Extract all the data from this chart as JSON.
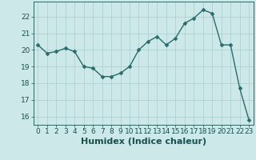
{
  "x": [
    0,
    1,
    2,
    3,
    4,
    5,
    6,
    7,
    8,
    9,
    10,
    11,
    12,
    13,
    14,
    15,
    16,
    17,
    18,
    19,
    20,
    21,
    22,
    23
  ],
  "y": [
    20.3,
    19.8,
    19.9,
    20.1,
    19.9,
    19.0,
    18.9,
    18.4,
    18.4,
    18.6,
    19.0,
    20.0,
    20.5,
    20.8,
    20.3,
    20.7,
    21.6,
    21.9,
    22.4,
    22.2,
    20.3,
    20.3,
    17.7,
    15.8
  ],
  "bg_color": "#cce8e8",
  "line_color": "#2a6b6b",
  "marker_color": "#2a6b6b",
  "grid_color": "#aacece",
  "tick_color": "#1a4f4f",
  "xlabel": "Humidex (Indice chaleur)",
  "ylim": [
    15.5,
    22.9
  ],
  "yticks": [
    16,
    17,
    18,
    19,
    20,
    21,
    22
  ],
  "xticks": [
    0,
    1,
    2,
    3,
    4,
    5,
    6,
    7,
    8,
    9,
    10,
    11,
    12,
    13,
    14,
    15,
    16,
    17,
    18,
    19,
    20,
    21,
    22,
    23
  ],
  "xtick_labels": [
    "0",
    "1",
    "2",
    "3",
    "4",
    "5",
    "6",
    "7",
    "8",
    "9",
    "10",
    "11",
    "12",
    "13",
    "14",
    "15",
    "16",
    "17",
    "18",
    "19",
    "20",
    "21",
    "22",
    "23"
  ],
  "xlabel_fontsize": 8,
  "tick_fontsize": 6.5,
  "line_width": 1.0,
  "marker_size": 2.5
}
